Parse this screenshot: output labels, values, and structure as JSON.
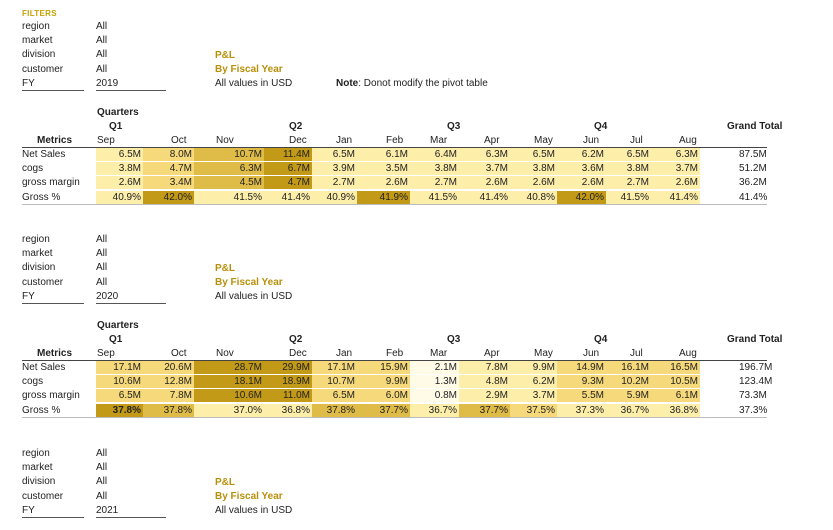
{
  "filters_heading": "FILTERS",
  "note": {
    "bold": "Note",
    "text": ": Donot modify the pivot table"
  },
  "blocks": [
    {
      "filters": [
        {
          "label": "region",
          "value": "All"
        },
        {
          "label": "market",
          "value": "All"
        },
        {
          "label": "division",
          "value": "All"
        },
        {
          "label": "customer",
          "value": "All"
        },
        {
          "label": "FY",
          "value": "2019"
        }
      ],
      "title": {
        "line1": "P&L",
        "line2": "By Fiscal Year",
        "line3": "All values in USD"
      },
      "quarters_label": "Quarters",
      "quarter_names": [
        "Q1",
        "Q2",
        "Q3",
        "Q4"
      ],
      "grand_total_label": "Grand Total",
      "metrics_label": "Metrics",
      "months": [
        "Sep",
        "Oct",
        "Nov",
        "Dec",
        "Jan",
        "Feb",
        "Mar",
        "Apr",
        "May",
        "Jun",
        "Jul",
        "Aug"
      ],
      "rows": [
        {
          "label": "Net Sales",
          "values": [
            "6.5M",
            "8.0M",
            "10.7M",
            "11.4M",
            "6.5M",
            "6.1M",
            "6.4M",
            "6.3M",
            "6.5M",
            "6.2M",
            "6.5M",
            "6.3M"
          ],
          "total": "87.5M",
          "shade": [
            1,
            2,
            3,
            4,
            1,
            1,
            1,
            1,
            1,
            1,
            1,
            1
          ]
        },
        {
          "label": "cogs",
          "values": [
            "3.8M",
            "4.7M",
            "6.3M",
            "6.7M",
            "3.9M",
            "3.5M",
            "3.8M",
            "3.7M",
            "3.8M",
            "3.6M",
            "3.8M",
            "3.7M"
          ],
          "total": "51.2M",
          "shade": [
            1,
            2,
            3,
            4,
            1,
            1,
            1,
            1,
            1,
            1,
            1,
            1
          ]
        },
        {
          "label": "gross margin",
          "values": [
            "2.6M",
            "3.4M",
            "4.5M",
            "4.7M",
            "2.7M",
            "2.6M",
            "2.7M",
            "2.6M",
            "2.6M",
            "2.6M",
            "2.7M",
            "2.6M"
          ],
          "total": "36.2M",
          "shade": [
            1,
            2,
            3,
            4,
            1,
            1,
            1,
            1,
            1,
            1,
            1,
            1
          ]
        },
        {
          "label": "Gross %",
          "values": [
            "40.9%",
            "42.0%",
            "41.5%",
            "41.4%",
            "40.9%",
            "41.9%",
            "41.5%",
            "41.4%",
            "40.8%",
            "42.0%",
            "41.5%",
            "41.4%"
          ],
          "total": "41.4%",
          "shade": [
            1,
            4,
            1,
            1,
            1,
            4,
            1,
            1,
            1,
            4,
            1,
            1
          ],
          "bold": [
            false,
            false,
            false,
            false,
            false,
            false,
            false,
            false,
            false,
            false,
            false,
            false
          ]
        }
      ]
    },
    {
      "filters": [
        {
          "label": "region",
          "value": "All"
        },
        {
          "label": "market",
          "value": "All"
        },
        {
          "label": "division",
          "value": "All"
        },
        {
          "label": "customer",
          "value": "All"
        },
        {
          "label": "FY",
          "value": "2020"
        }
      ],
      "title": {
        "line1": "P&L",
        "line2": "By Fiscal Year",
        "line3": "All values in USD"
      },
      "quarters_label": "Quarters",
      "quarter_names": [
        "Q1",
        "Q2",
        "Q3",
        "Q4"
      ],
      "grand_total_label": "Grand Total",
      "metrics_label": "Metrics",
      "months": [
        "Sep",
        "Oct",
        "Nov",
        "Dec",
        "Jan",
        "Feb",
        "Mar",
        "Apr",
        "May",
        "Jun",
        "Jul",
        "Aug"
      ],
      "rows": [
        {
          "label": "Net Sales",
          "values": [
            "17.1M",
            "20.6M",
            "28.7M",
            "29.9M",
            "17.1M",
            "15.9M",
            "2.1M",
            "7.8M",
            "9.9M",
            "14.9M",
            "16.1M",
            "16.5M"
          ],
          "total": "196.7M",
          "shade": [
            2,
            2,
            4,
            4,
            2,
            2,
            0,
            1,
            1,
            2,
            2,
            2
          ]
        },
        {
          "label": "cogs",
          "values": [
            "10.6M",
            "12.8M",
            "18.1M",
            "18.9M",
            "10.7M",
            "9.9M",
            "1.3M",
            "4.8M",
            "6.2M",
            "9.3M",
            "10.2M",
            "10.5M"
          ],
          "total": "123.4M",
          "shade": [
            2,
            2,
            4,
            4,
            2,
            2,
            0,
            1,
            1,
            2,
            2,
            2
          ]
        },
        {
          "label": "gross margin",
          "values": [
            "6.5M",
            "7.8M",
            "10.6M",
            "11.0M",
            "6.5M",
            "6.0M",
            "0.8M",
            "2.9M",
            "3.7M",
            "5.5M",
            "5.9M",
            "6.1M"
          ],
          "total": "73.3M",
          "shade": [
            2,
            2,
            4,
            4,
            2,
            2,
            0,
            1,
            1,
            2,
            2,
            2
          ]
        },
        {
          "label": "Gross %",
          "values": [
            "37.8%",
            "37.8%",
            "37.0%",
            "36.8%",
            "37.8%",
            "37.7%",
            "36.7%",
            "37.7%",
            "37.5%",
            "37.3%",
            "36.7%",
            "36.8%"
          ],
          "total": "37.3%",
          "shade": [
            4,
            3,
            1,
            1,
            3,
            3,
            1,
            3,
            2,
            1,
            1,
            1
          ],
          "bold": [
            true,
            false,
            false,
            false,
            false,
            false,
            false,
            false,
            false,
            false,
            false,
            false
          ]
        }
      ]
    },
    {
      "filters": [
        {
          "label": "region",
          "value": "All"
        },
        {
          "label": "market",
          "value": "All"
        },
        {
          "label": "division",
          "value": "All"
        },
        {
          "label": "customer",
          "value": "All"
        },
        {
          "label": "FY",
          "value": "2021"
        }
      ],
      "title": {
        "line1": "P&L",
        "line2": "By Fiscal Year",
        "line3": "All values in USD"
      }
    }
  ],
  "shade_colors": [
    "#fffbe6",
    "#fdeeaa",
    "#f6d97b",
    "#dfbb48",
    "#c29a17"
  ]
}
